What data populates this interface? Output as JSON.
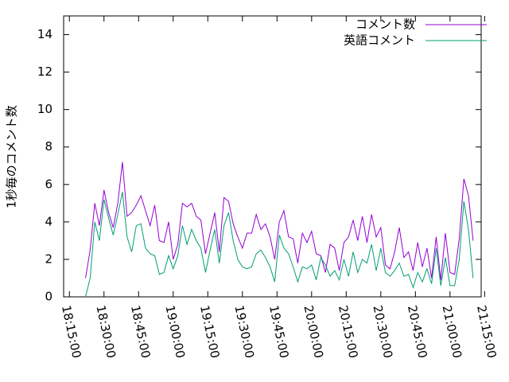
{
  "chart_data": {
    "type": "line",
    "y_label": "1秒毎のコメント数",
    "xlim": [
      "18:12:30",
      "21:13:30"
    ],
    "xticks": [
      "18:15:00",
      "18:30:00",
      "18:45:00",
      "19:00:00",
      "19:15:00",
      "19:30:00",
      "19:45:00",
      "20:00:00",
      "20:15:00",
      "20:30:00",
      "20:45:00",
      "21:00:00",
      "21:15:00"
    ],
    "ylim": [
      0,
      15
    ],
    "yticks": [
      0,
      2,
      4,
      6,
      8,
      10,
      12,
      14
    ],
    "legend": "top-right",
    "x": [
      "18:22:00",
      "18:24:00",
      "18:26:00",
      "18:28:00",
      "18:30:00",
      "18:32:00",
      "18:34:00",
      "18:36:00",
      "18:38:00",
      "18:40:00",
      "18:42:00",
      "18:44:00",
      "18:46:00",
      "18:48:00",
      "18:50:00",
      "18:52:00",
      "18:54:00",
      "18:56:00",
      "18:58:00",
      "19:00:00",
      "19:02:00",
      "19:04:00",
      "19:06:00",
      "19:08:00",
      "19:10:00",
      "19:12:00",
      "19:14:00",
      "19:16:00",
      "19:18:00",
      "19:20:00",
      "19:22:00",
      "19:24:00",
      "19:26:00",
      "19:28:00",
      "19:30:00",
      "19:32:00",
      "19:34:00",
      "19:36:00",
      "19:38:00",
      "19:40:00",
      "19:42:00",
      "19:44:00",
      "19:46:00",
      "19:48:00",
      "19:50:00",
      "19:52:00",
      "19:54:00",
      "19:56:00",
      "19:58:00",
      "20:00:00",
      "20:02:00",
      "20:04:00",
      "20:06:00",
      "20:08:00",
      "20:10:00",
      "20:12:00",
      "20:14:00",
      "20:16:00",
      "20:18:00",
      "20:20:00",
      "20:22:00",
      "20:24:00",
      "20:26:00",
      "20:28:00",
      "20:30:00",
      "20:32:00",
      "20:34:00",
      "20:36:00",
      "20:38:00",
      "20:40:00",
      "20:42:00",
      "20:44:00",
      "20:46:00",
      "20:48:00",
      "20:50:00",
      "20:52:00",
      "20:54:00",
      "20:56:00",
      "20:58:00",
      "21:00:00",
      "21:02:00",
      "21:04:00",
      "21:06:00",
      "21:08:00",
      "21:10:00"
    ],
    "series": [
      {
        "name": "コメント数",
        "color": "#9400d3",
        "values": [
          1.0,
          2.5,
          5.0,
          3.8,
          5.7,
          4.5,
          3.7,
          5.0,
          7.2,
          4.3,
          4.5,
          4.9,
          5.4,
          4.6,
          3.8,
          4.9,
          3.0,
          2.9,
          4.0,
          2.0,
          2.8,
          5.0,
          4.8,
          5.0,
          4.3,
          4.1,
          2.3,
          3.4,
          4.5,
          2.4,
          5.3,
          5.1,
          3.9,
          3.2,
          2.6,
          3.4,
          3.4,
          4.4,
          3.6,
          3.9,
          3.2,
          2.0,
          4.0,
          4.6,
          3.2,
          3.1,
          1.8,
          3.4,
          2.9,
          3.5,
          2.3,
          2.2,
          1.3,
          2.8,
          2.6,
          1.4,
          2.9,
          3.2,
          4.1,
          3.0,
          4.3,
          2.9,
          4.4,
          3.2,
          3.7,
          1.7,
          1.5,
          2.4,
          3.7,
          2.1,
          2.4,
          1.4,
          2.9,
          1.6,
          2.6,
          1.0,
          3.2,
          0.9,
          3.4,
          1.3,
          1.2,
          3.1,
          6.3,
          5.4,
          3.0
        ]
      },
      {
        "name": "英語コメント",
        "color": "#009e73",
        "values": [
          0.0,
          1.0,
          4.0,
          3.0,
          5.2,
          4.2,
          3.3,
          4.4,
          5.6,
          3.2,
          2.4,
          3.8,
          3.9,
          2.6,
          2.3,
          2.2,
          1.2,
          1.3,
          2.2,
          1.5,
          2.2,
          3.8,
          2.8,
          3.6,
          3.0,
          2.6,
          1.3,
          2.5,
          3.6,
          1.8,
          3.8,
          4.5,
          3.0,
          2.0,
          1.6,
          1.5,
          1.6,
          2.3,
          2.5,
          2.1,
          1.6,
          0.8,
          3.3,
          2.6,
          2.3,
          1.6,
          0.8,
          1.6,
          1.5,
          1.7,
          0.9,
          2.1,
          1.7,
          1.1,
          1.4,
          0.9,
          2.0,
          1.1,
          2.4,
          1.3,
          2.0,
          1.8,
          2.8,
          1.4,
          2.6,
          1.3,
          1.1,
          1.4,
          1.8,
          1.1,
          1.2,
          0.5,
          1.3,
          0.8,
          1.5,
          0.7,
          2.6,
          0.6,
          2.1,
          0.6,
          0.6,
          2.0,
          5.1,
          3.6,
          1.0
        ]
      }
    ]
  }
}
